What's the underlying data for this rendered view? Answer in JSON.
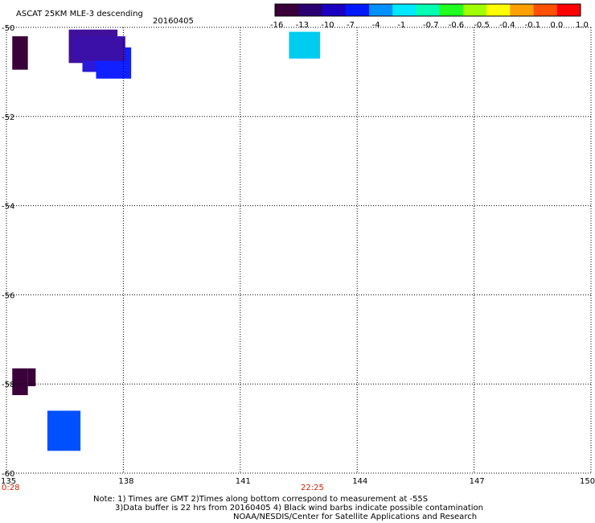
{
  "header": {
    "title": "ASCAT 25KM MLE-3 descending",
    "date": "20160405"
  },
  "colorbar": {
    "labels": [
      "-16",
      "-13",
      "-10",
      "-7",
      "-4",
      "-1",
      "-0.7",
      "-0.6",
      "-0.5",
      "-0.4",
      "-0.1",
      "0.0",
      "1.0"
    ],
    "colors": [
      "#3a003a",
      "#2a0070",
      "#1a00c0",
      "#0018ff",
      "#0090ff",
      "#00e8ff",
      "#00ffb0",
      "#20ff20",
      "#a0ff00",
      "#ffff00",
      "#ffa000",
      "#ff5000",
      "#ff0000"
    ]
  },
  "time_labels": {
    "start": "0:28",
    "mid": "22:25"
  },
  "time_color": "#cc2200",
  "notes": {
    "line1": "Note: 1) Times are GMT 2)Times along bottom correspond to measurement at -55S",
    "line2": "3)Data buffer is 22 hrs from 20160405 4) Black wind barbs indicate possible contamination",
    "line3": "NOAA/NESDIS/Center for Satellite Applications and Research"
  },
  "chart_data": {
    "type": "heatmap",
    "title": "ASCAT 25KM MLE-3 descending",
    "xlim": [
      135,
      150
    ],
    "ylim": [
      -60,
      -50
    ],
    "xticks": [
      135,
      138,
      141,
      144,
      147,
      150
    ],
    "yticks": [
      -50,
      -52,
      -54,
      -56,
      -58,
      -60
    ],
    "xtick_labels": [
      "135",
      "138",
      "141",
      "144",
      "147",
      "150"
    ],
    "ytick_labels": [
      "-50",
      "-52",
      "-54",
      "-56",
      "-58",
      "-60"
    ],
    "grid": true,
    "cells": [
      {
        "x0": 135.15,
        "x1": 135.55,
        "y0": -50.2,
        "y1": -50.95,
        "color": "#3a003a"
      },
      {
        "x0": 136.6,
        "x1": 137.85,
        "y0": -50.05,
        "y1": -50.8,
        "color": "#40109a"
      },
      {
        "x0": 136.95,
        "x1": 138.0,
        "y0": -50.3,
        "y1": -51.0,
        "color": "#2a1ad8"
      },
      {
        "x0": 137.3,
        "x1": 138.2,
        "y0": -50.45,
        "y1": -51.15,
        "color": "#1020ff"
      },
      {
        "x0": 136.7,
        "x1": 138.05,
        "y0": -50.2,
        "y1": -50.75,
        "color": "#3a10a8"
      },
      {
        "x0": 142.25,
        "x1": 143.05,
        "y0": -50.1,
        "y1": -50.7,
        "color": "#00ccf0"
      },
      {
        "x0": 135.15,
        "x1": 135.55,
        "y0": -57.65,
        "y1": -58.25,
        "color": "#3a003a"
      },
      {
        "x0": 135.55,
        "x1": 135.75,
        "y0": -57.65,
        "y1": -58.05,
        "color": "#3a003a"
      },
      {
        "x0": 136.05,
        "x1": 136.9,
        "y0": -58.6,
        "y1": -59.5,
        "color": "#0050ff"
      }
    ]
  }
}
